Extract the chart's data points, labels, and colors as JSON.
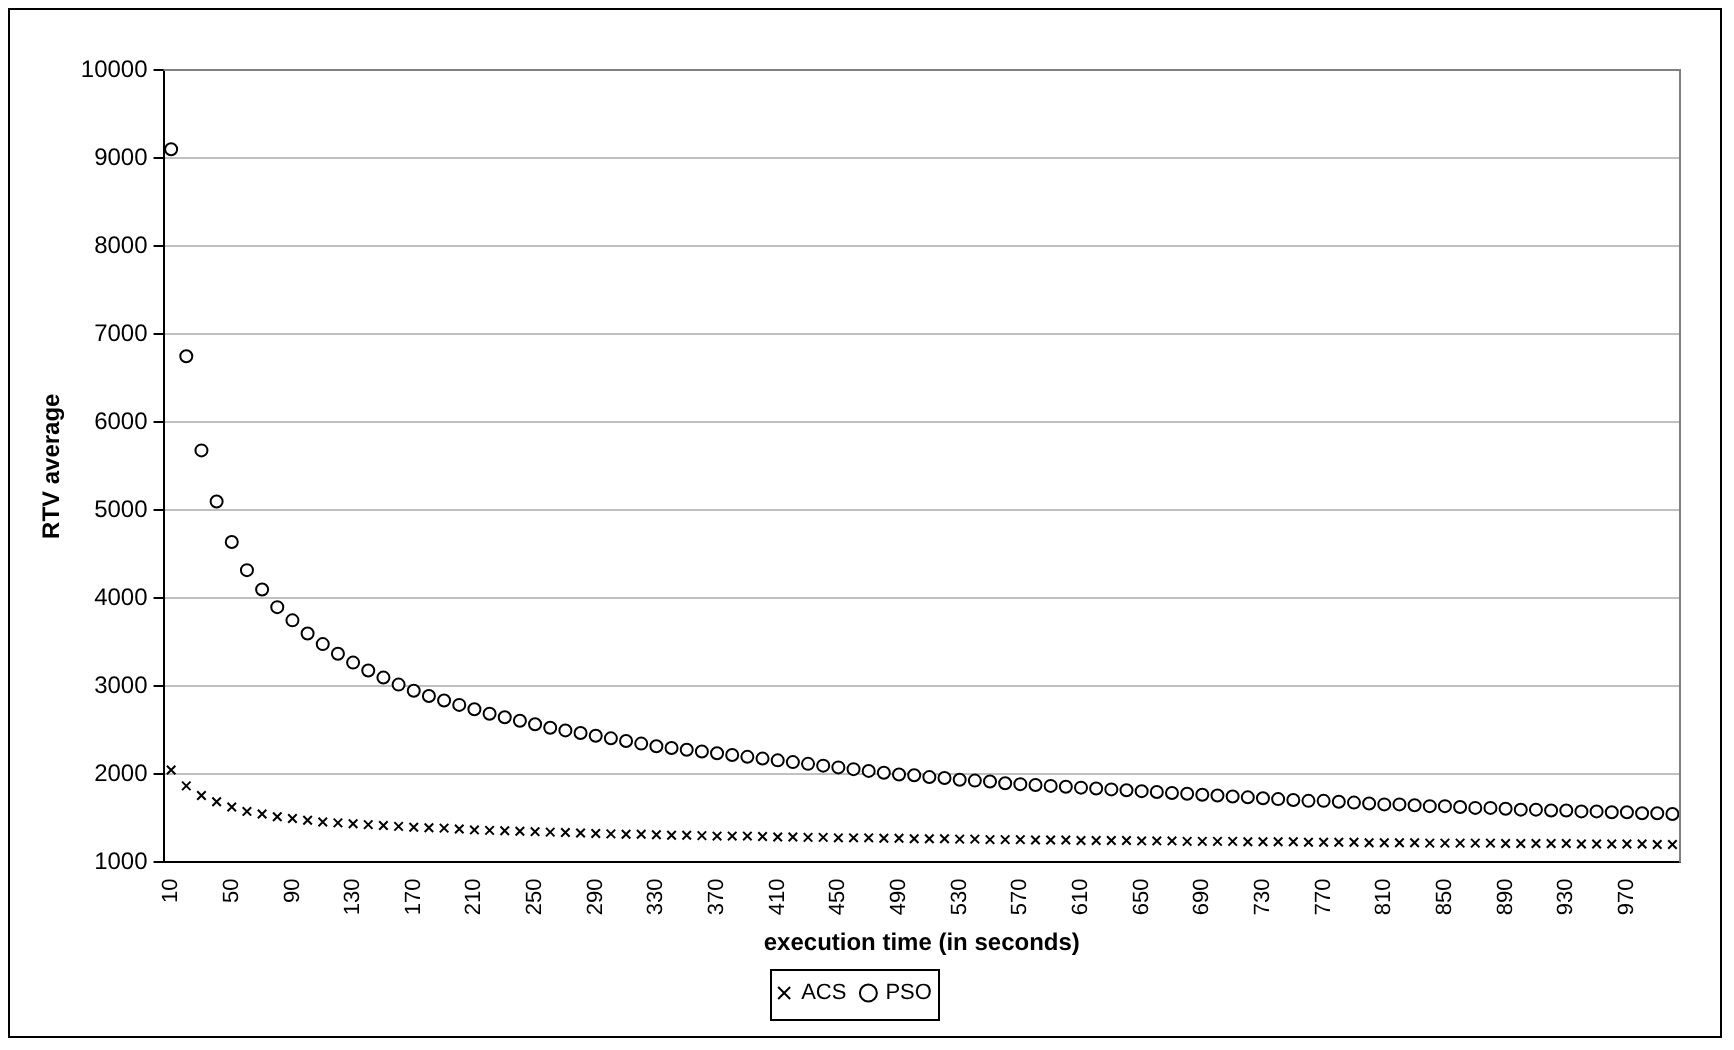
{
  "chart_data": {
    "type": "scatter",
    "xlabel": "execution time (in seconds)",
    "ylabel": "RTV average",
    "categories": [
      "10",
      null,
      null,
      null,
      "50",
      null,
      null,
      null,
      "90",
      null,
      null,
      null,
      "130",
      null,
      null,
      null,
      "170",
      null,
      null,
      null,
      "210",
      null,
      null,
      null,
      "250",
      null,
      null,
      null,
      "290",
      null,
      null,
      null,
      "330",
      null,
      null,
      null,
      "370",
      null,
      null,
      null,
      "410",
      null,
      null,
      null,
      "450",
      null,
      null,
      null,
      "490",
      null,
      null,
      null,
      "530",
      null,
      null,
      null,
      "570",
      null,
      null,
      null,
      "610",
      null,
      null,
      null,
      "650",
      null,
      null,
      null,
      "690",
      null,
      null,
      null,
      "730",
      null,
      null,
      null,
      "770",
      null,
      null,
      null,
      "810",
      null,
      null,
      null,
      "850",
      null,
      null,
      null,
      "890",
      null,
      null,
      null,
      "930",
      null,
      null,
      null,
      "970",
      null,
      null,
      null
    ],
    "series": [
      {
        "name": "ACS",
        "color": "#000000",
        "marker": "cross",
        "values": [
          2050,
          1870,
          1760,
          1690,
          1630,
          1580,
          1550,
          1520,
          1500,
          1480,
          1460,
          1450,
          1440,
          1430,
          1420,
          1410,
          1400,
          1395,
          1390,
          1380,
          1370,
          1365,
          1360,
          1355,
          1350,
          1345,
          1340,
          1335,
          1330,
          1325,
          1320,
          1320,
          1315,
          1310,
          1310,
          1305,
          1300,
          1300,
          1300,
          1295,
          1290,
          1290,
          1285,
          1285,
          1280,
          1280,
          1280,
          1275,
          1275,
          1270,
          1270,
          1270,
          1265,
          1265,
          1260,
          1260,
          1260,
          1255,
          1255,
          1255,
          1250,
          1250,
          1250,
          1250,
          1245,
          1245,
          1245,
          1240,
          1240,
          1240,
          1240,
          1235,
          1235,
          1235,
          1235,
          1230,
          1230,
          1230,
          1230,
          1225,
          1225,
          1225,
          1225,
          1220,
          1220,
          1220,
          1220,
          1220,
          1215,
          1215,
          1215,
          1215,
          1215,
          1210,
          1210,
          1210,
          1210,
          1210,
          1205,
          1205
        ]
      },
      {
        "name": "PSO",
        "color": "#000000",
        "marker": "circle",
        "values": [
          9100,
          6750,
          5680,
          5100,
          4640,
          4320,
          4100,
          3900,
          3750,
          3600,
          3480,
          3370,
          3270,
          3180,
          3100,
          3020,
          2950,
          2890,
          2840,
          2790,
          2740,
          2690,
          2650,
          2610,
          2570,
          2530,
          2500,
          2470,
          2440,
          2410,
          2380,
          2350,
          2320,
          2300,
          2280,
          2260,
          2240,
          2220,
          2200,
          2180,
          2160,
          2140,
          2120,
          2100,
          2080,
          2060,
          2040,
          2020,
          2000,
          1990,
          1970,
          1960,
          1940,
          1930,
          1920,
          1900,
          1890,
          1880,
          1870,
          1860,
          1850,
          1840,
          1830,
          1820,
          1810,
          1800,
          1790,
          1780,
          1770,
          1760,
          1750,
          1740,
          1730,
          1720,
          1710,
          1700,
          1700,
          1690,
          1680,
          1670,
          1660,
          1660,
          1650,
          1640,
          1640,
          1630,
          1620,
          1620,
          1610,
          1600,
          1600,
          1590,
          1590,
          1580,
          1580,
          1570,
          1570,
          1560,
          1560,
          1550
        ]
      }
    ],
    "ylim": [
      1000,
      10000
    ],
    "yticks": [
      1000,
      2000,
      3000,
      4000,
      5000,
      6000,
      7000,
      8000,
      9000,
      10000
    ],
    "grid": "y",
    "legend": "bottom"
  }
}
